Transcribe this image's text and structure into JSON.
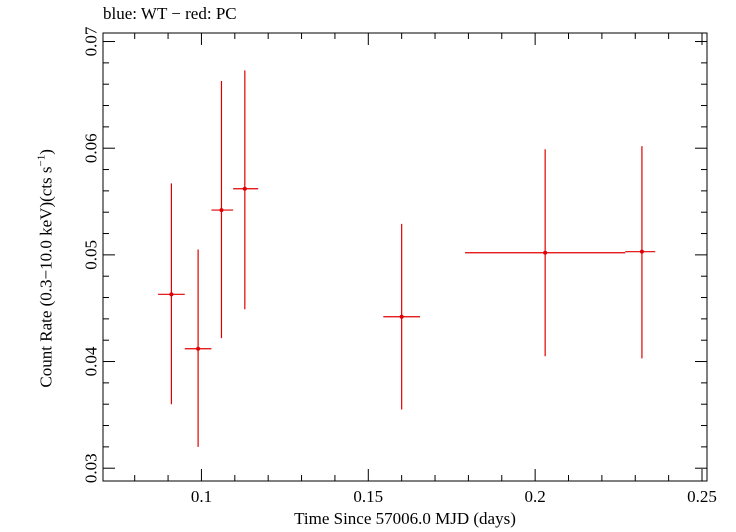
{
  "title": "blue: WT − red: PC",
  "chart_data": {
    "type": "scatter",
    "xlabel": "Time Since 57006.0 MJD (days)",
    "ylabel_main": "Count Rate (0.3−10.0 keV)(cts s",
    "ylabel_sup": "−1",
    "ylabel_tail": ")",
    "xlim": [
      0.0705,
      0.2515
    ],
    "ylim": [
      0.0288,
      0.0708
    ],
    "xticks": [
      0.1,
      0.15,
      0.2,
      0.25
    ],
    "xtick_labels": [
      "0.1",
      "0.15",
      "0.2",
      "0.25"
    ],
    "yticks": [
      0.03,
      0.04,
      0.05,
      0.06,
      0.07
    ],
    "ytick_labels": [
      "0.03",
      "0.04",
      "0.05",
      "0.06",
      "0.07"
    ],
    "grid": false,
    "series": [
      {
        "color": "#e00000",
        "points": [
          {
            "x": 0.091,
            "y": 0.0463,
            "xlo": 0.087,
            "xhi": 0.095,
            "ylo": 0.036,
            "yhi": 0.0567
          },
          {
            "x": 0.099,
            "y": 0.0412,
            "xlo": 0.095,
            "xhi": 0.103,
            "ylo": 0.032,
            "yhi": 0.0505
          },
          {
            "x": 0.106,
            "y": 0.0542,
            "xlo": 0.103,
            "xhi": 0.1095,
            "ylo": 0.0422,
            "yhi": 0.0663
          },
          {
            "x": 0.113,
            "y": 0.0562,
            "xlo": 0.1095,
            "xhi": 0.117,
            "ylo": 0.0449,
            "yhi": 0.0673
          },
          {
            "x": 0.16,
            "y": 0.0442,
            "xlo": 0.1545,
            "xhi": 0.1655,
            "ylo": 0.0355,
            "yhi": 0.0529
          },
          {
            "x": 0.203,
            "y": 0.0502,
            "xlo": 0.179,
            "xhi": 0.227,
            "ylo": 0.0405,
            "yhi": 0.0599
          },
          {
            "x": 0.232,
            "y": 0.0503,
            "xlo": 0.227,
            "xhi": 0.236,
            "ylo": 0.0403,
            "yhi": 0.0602
          }
        ]
      }
    ]
  }
}
